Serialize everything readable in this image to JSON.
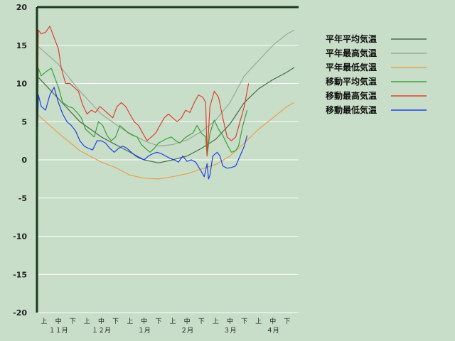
{
  "chart_data": {
    "type": "line",
    "ylim": [
      -20,
      20
    ],
    "yticks": [
      20,
      15,
      10,
      5,
      0,
      -5,
      -10,
      -15,
      -20
    ],
    "xlim": [
      0,
      183
    ],
    "period_ticks": [
      {
        "label": "上",
        "day": 5
      },
      {
        "label": "中",
        "day": 15
      },
      {
        "label": "下",
        "day": 25
      },
      {
        "label": "上",
        "day": 35
      },
      {
        "label": "中",
        "day": 45
      },
      {
        "label": "下",
        "day": 55
      },
      {
        "label": "上",
        "day": 65
      },
      {
        "label": "中",
        "day": 75
      },
      {
        "label": "下",
        "day": 85
      },
      {
        "label": "上",
        "day": 95
      },
      {
        "label": "中",
        "day": 105
      },
      {
        "label": "下",
        "day": 115
      },
      {
        "label": "上",
        "day": 125
      },
      {
        "label": "中",
        "day": 135
      },
      {
        "label": "下",
        "day": 145
      },
      {
        "label": "上",
        "day": 155
      },
      {
        "label": "中",
        "day": 165
      },
      {
        "label": "下",
        "day": 175
      }
    ],
    "month_ticks": [
      {
        "label": "１１月",
        "day": 15
      },
      {
        "label": "１２月",
        "day": 45
      },
      {
        "label": "１月",
        "day": 75
      },
      {
        "label": "２月",
        "day": 105
      },
      {
        "label": "３月",
        "day": 135
      },
      {
        "label": "４月",
        "day": 165
      }
    ],
    "grid": true,
    "legend_position": "right",
    "series": [
      {
        "name": "平年平均気温",
        "color": "#4a6b4a",
        "points": [
          [
            0,
            11
          ],
          [
            15,
            8
          ],
          [
            30,
            5
          ],
          [
            45,
            3
          ],
          [
            60,
            1.5
          ],
          [
            75,
            0
          ],
          [
            85,
            -0.4
          ],
          [
            95,
            0
          ],
          [
            105,
            0.5
          ],
          [
            115,
            1.5
          ],
          [
            125,
            2.7
          ],
          [
            135,
            4.7
          ],
          [
            145,
            7.5
          ],
          [
            155,
            9.3
          ],
          [
            165,
            10.5
          ],
          [
            175,
            11.5
          ],
          [
            180,
            12.1
          ]
        ]
      },
      {
        "name": "平年最高気温",
        "color": "#9aaa9a",
        "points": [
          [
            0,
            15
          ],
          [
            15,
            12.5
          ],
          [
            30,
            9
          ],
          [
            45,
            6
          ],
          [
            60,
            4
          ],
          [
            75,
            2.5
          ],
          [
            85,
            1.8
          ],
          [
            95,
            2
          ],
          [
            105,
            2.6
          ],
          [
            115,
            3.7
          ],
          [
            125,
            5.2
          ],
          [
            135,
            7.5
          ],
          [
            145,
            11
          ],
          [
            155,
            13
          ],
          [
            165,
            15
          ],
          [
            175,
            16.5
          ],
          [
            180,
            17
          ]
        ]
      },
      {
        "name": "平年最低気温",
        "color": "#e8a050",
        "points": [
          [
            0,
            6
          ],
          [
            15,
            3.5
          ],
          [
            30,
            1.2
          ],
          [
            45,
            -0.3
          ],
          [
            55,
            -1
          ],
          [
            65,
            -2
          ],
          [
            75,
            -2.4
          ],
          [
            85,
            -2.5
          ],
          [
            95,
            -2.2
          ],
          [
            105,
            -1.8
          ],
          [
            115,
            -1.2
          ],
          [
            125,
            -0.6
          ],
          [
            135,
            0.5
          ],
          [
            145,
            2.2
          ],
          [
            155,
            4
          ],
          [
            165,
            5.5
          ],
          [
            175,
            7
          ],
          [
            180,
            7.5
          ]
        ]
      },
      {
        "name": "移動平均気温",
        "color": "#3aa03a",
        "points": [
          [
            0,
            1.5
          ],
          [
            1,
            12
          ],
          [
            3,
            11
          ],
          [
            6,
            11.5
          ],
          [
            10,
            12
          ],
          [
            13,
            10.5
          ],
          [
            15,
            9.5
          ],
          [
            18,
            7.5
          ],
          [
            22,
            7
          ],
          [
            25,
            6.8
          ],
          [
            28,
            6.2
          ],
          [
            31,
            5.5
          ],
          [
            34,
            4
          ],
          [
            37,
            3.5
          ],
          [
            40,
            3
          ],
          [
            43,
            5
          ],
          [
            46,
            4.5
          ],
          [
            49,
            3.2
          ],
          [
            52,
            2.5
          ],
          [
            55,
            3
          ],
          [
            58,
            4.5
          ],
          [
            61,
            4
          ],
          [
            64,
            3.5
          ],
          [
            67,
            3.2
          ],
          [
            70,
            3
          ],
          [
            73,
            2
          ],
          [
            76,
            1.5
          ],
          [
            79,
            1
          ],
          [
            82,
            1.5
          ],
          [
            85,
            2.2
          ],
          [
            88,
            2.5
          ],
          [
            91,
            2.8
          ],
          [
            94,
            3
          ],
          [
            97,
            2.5
          ],
          [
            100,
            2.2
          ],
          [
            103,
            2.8
          ],
          [
            106,
            3.2
          ],
          [
            109,
            3.5
          ],
          [
            112,
            4.5
          ],
          [
            115,
            3.5
          ],
          [
            118,
            3
          ],
          [
            119,
            0.5
          ],
          [
            121,
            3.5
          ],
          [
            124,
            5.2
          ],
          [
            127,
            4
          ],
          [
            130,
            3.2
          ],
          [
            133,
            2
          ],
          [
            136,
            1
          ],
          [
            139,
            1.2
          ],
          [
            141,
            1.8
          ],
          [
            144,
            4.5
          ],
          [
            147,
            6.5
          ]
        ]
      },
      {
        "name": "移動最高気温",
        "color": "#e04030",
        "points": [
          [
            0,
            3
          ],
          [
            1,
            17
          ],
          [
            3,
            16.5
          ],
          [
            6,
            16.7
          ],
          [
            9,
            17.5
          ],
          [
            12,
            16
          ],
          [
            15,
            14.5
          ],
          [
            17,
            12
          ],
          [
            20,
            10
          ],
          [
            23,
            10
          ],
          [
            26,
            9.5
          ],
          [
            29,
            9
          ],
          [
            32,
            7.2
          ],
          [
            35,
            6
          ],
          [
            38,
            6.5
          ],
          [
            41,
            6.2
          ],
          [
            44,
            7
          ],
          [
            47,
            6.5
          ],
          [
            50,
            6
          ],
          [
            53,
            5.5
          ],
          [
            56,
            7
          ],
          [
            59,
            7.5
          ],
          [
            62,
            7
          ],
          [
            65,
            6
          ],
          [
            68,
            5
          ],
          [
            71,
            4.5
          ],
          [
            74,
            3.5
          ],
          [
            77,
            2.5
          ],
          [
            80,
            3
          ],
          [
            83,
            3.5
          ],
          [
            86,
            4.5
          ],
          [
            89,
            5.5
          ],
          [
            92,
            6
          ],
          [
            95,
            5.5
          ],
          [
            98,
            5
          ],
          [
            101,
            5.5
          ],
          [
            104,
            6.5
          ],
          [
            107,
            6.2
          ],
          [
            110,
            7.5
          ],
          [
            113,
            8.5
          ],
          [
            116,
            8.2
          ],
          [
            118,
            7.5
          ],
          [
            119,
            0.5
          ],
          [
            121,
            7
          ],
          [
            124,
            9
          ],
          [
            127,
            8.2
          ],
          [
            130,
            5.5
          ],
          [
            133,
            3
          ],
          [
            136,
            2.5
          ],
          [
            139,
            3
          ],
          [
            142,
            5
          ],
          [
            145,
            7
          ],
          [
            148,
            10
          ]
        ]
      },
      {
        "name": "移動最低気温",
        "color": "#2040e0",
        "points": [
          [
            0,
            0
          ],
          [
            1,
            8.5
          ],
          [
            3,
            7
          ],
          [
            6,
            6.5
          ],
          [
            9,
            8.5
          ],
          [
            12,
            9.5
          ],
          [
            15,
            7.5
          ],
          [
            18,
            6
          ],
          [
            21,
            5
          ],
          [
            24,
            4.5
          ],
          [
            27,
            3.8
          ],
          [
            30,
            2.5
          ],
          [
            33,
            1.8
          ],
          [
            36,
            1.5
          ],
          [
            39,
            1.3
          ],
          [
            42,
            2.5
          ],
          [
            45,
            2.5
          ],
          [
            48,
            2.2
          ],
          [
            51,
            1.5
          ],
          [
            54,
            1
          ],
          [
            57,
            1.5
          ],
          [
            60,
            1.8
          ],
          [
            63,
            1.5
          ],
          [
            66,
            1
          ],
          [
            69,
            0.5
          ],
          [
            72,
            0.2
          ],
          [
            75,
            0
          ],
          [
            78,
            0.5
          ],
          [
            81,
            0.8
          ],
          [
            84,
            1
          ],
          [
            87,
            0.8
          ],
          [
            90,
            0.5
          ],
          [
            93,
            0.2
          ],
          [
            96,
            0
          ],
          [
            99,
            -0.3
          ],
          [
            102,
            0.5
          ],
          [
            105,
            -0.2
          ],
          [
            108,
            0
          ],
          [
            111,
            -0.3
          ],
          [
            114,
            -1.2
          ],
          [
            117,
            -2.2
          ],
          [
            119,
            -0.5
          ],
          [
            120,
            -2.5
          ],
          [
            121,
            -2
          ],
          [
            123,
            0.5
          ],
          [
            126,
            1
          ],
          [
            128,
            0.5
          ],
          [
            130,
            -0.8
          ],
          [
            133,
            -1.1
          ],
          [
            136,
            -1
          ],
          [
            139,
            -0.8
          ],
          [
            142,
            0.5
          ],
          [
            145,
            1.8
          ],
          [
            147,
            3.2
          ]
        ]
      }
    ]
  }
}
